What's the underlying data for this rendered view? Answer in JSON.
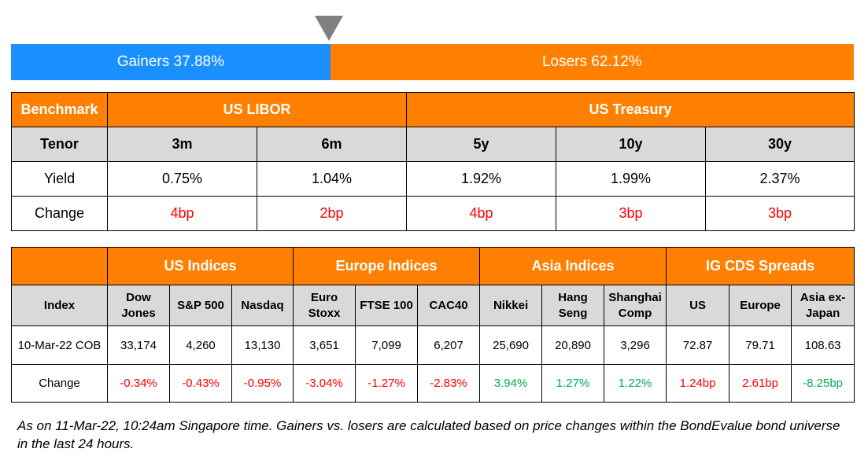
{
  "marker": {
    "icon": "triangle-down-icon",
    "color": "#7f7f7f"
  },
  "breadth": {
    "gainers_label": "Gainers 37.88%",
    "losers_label": "Losers 62.12%",
    "gainers_pct": 37.88,
    "losers_pct": 62.12,
    "gainers_color": "#1a8fff",
    "losers_color": "#ff8000"
  },
  "rates": {
    "header": {
      "benchmark": "Benchmark",
      "libor": "US LIBOR",
      "treasury": "US Treasury"
    },
    "tenor_label": "Tenor",
    "tenors": [
      "3m",
      "6m",
      "5y",
      "10y",
      "30y"
    ],
    "yield_label": "Yield",
    "yields": [
      "0.75%",
      "1.04%",
      "1.92%",
      "1.99%",
      "2.37%"
    ],
    "change_label": "Change",
    "changes": [
      "4bp",
      "2bp",
      "4bp",
      "3bp",
      "3bp"
    ]
  },
  "indices": {
    "groups": [
      "US Indices",
      "Europe Indices",
      "Asia Indices",
      "IG CDS Spreads"
    ],
    "index_label": "Index",
    "names": [
      [
        "Dow",
        "Jones"
      ],
      [
        "S&P 500"
      ],
      [
        "Nasdaq"
      ],
      [
        "Euro",
        "Stoxx"
      ],
      [
        "FTSE 100"
      ],
      [
        "CAC40"
      ],
      [
        "Nikkei"
      ],
      [
        "Hang",
        "Seng"
      ],
      [
        "Shanghai",
        "Comp"
      ],
      [
        "US"
      ],
      [
        "Europe"
      ],
      [
        "Asia ex-",
        "Japan"
      ]
    ],
    "date_label": "10-Mar-22 COB",
    "values": [
      "33,174",
      "4,260",
      "13,130",
      "3,651",
      "7,099",
      "6,207",
      "25,690",
      "20,890",
      "3,296",
      "72.87",
      "79.71",
      "108.63"
    ],
    "change_label": "Change",
    "changes": [
      "-0.34%",
      "-0.43%",
      "-0.95%",
      "-3.04%",
      "-1.27%",
      "-2.83%",
      "3.94%",
      "1.27%",
      "1.22%",
      "1.24bp",
      "2.61bp",
      "-8.25bp"
    ]
  },
  "colors": {
    "header": "#ff8000",
    "subheader": "#d9d9d9",
    "negative": "#ff0000",
    "positive": "#00b050"
  },
  "footnote": "As on 11-Mar-22, 10:24am Singapore time. Gainers vs. losers are calculated based on price changes within the BondEvalue bond universe in the last 24 hours."
}
